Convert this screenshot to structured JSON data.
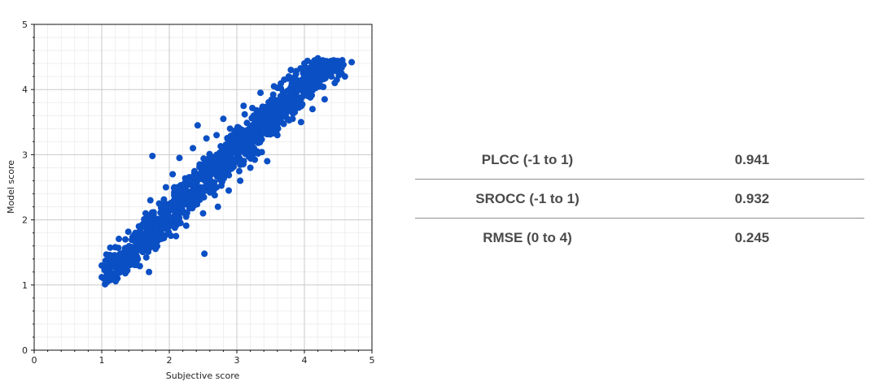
{
  "chart_data": {
    "type": "scatter",
    "title": "",
    "xlabel": "Subjective score",
    "ylabel": "Model score",
    "xlim": [
      0,
      5
    ],
    "ylim": [
      0,
      5
    ],
    "xticks": [
      "0",
      "1",
      "2",
      "3",
      "4",
      "5"
    ],
    "yticks": [
      "0",
      "1",
      "2",
      "3",
      "4",
      "5"
    ],
    "grid": true,
    "minor_grid": true,
    "legend": "none",
    "point_color": "#0b4fc4",
    "points": [
      [
        1.0,
        1.12
      ],
      [
        1.0,
        1.3
      ],
      [
        1.06,
        1.06
      ],
      [
        1.1,
        1.2
      ],
      [
        1.12,
        1.46
      ],
      [
        1.15,
        1.1
      ],
      [
        1.2,
        1.58
      ],
      [
        1.25,
        1.35
      ],
      [
        1.35,
        1.7
      ],
      [
        1.45,
        1.5
      ],
      [
        1.5,
        1.8
      ],
      [
        1.55,
        1.9
      ],
      [
        1.6,
        1.55
      ],
      [
        1.65,
        2.1
      ],
      [
        1.7,
        1.2
      ],
      [
        1.72,
        2.3
      ],
      [
        1.75,
        2.98
      ],
      [
        1.8,
        1.7
      ],
      [
        1.85,
        2.25
      ],
      [
        1.9,
        1.95
      ],
      [
        1.95,
        2.5
      ],
      [
        2.0,
        2.15
      ],
      [
        2.05,
        2.7
      ],
      [
        2.1,
        1.75
      ],
      [
        2.15,
        2.95
      ],
      [
        2.2,
        2.4
      ],
      [
        2.25,
        2.05
      ],
      [
        2.3,
        2.6
      ],
      [
        2.35,
        3.1
      ],
      [
        2.4,
        2.3
      ],
      [
        2.42,
        3.45
      ],
      [
        2.45,
        2.85
      ],
      [
        2.5,
        2.1
      ],
      [
        2.52,
        1.48
      ],
      [
        2.55,
        3.25
      ],
      [
        2.6,
        2.5
      ],
      [
        2.65,
        2.95
      ],
      [
        2.7,
        3.3
      ],
      [
        2.72,
        2.2
      ],
      [
        2.75,
        2.65
      ],
      [
        2.8,
        3.55
      ],
      [
        2.85,
        3.0
      ],
      [
        2.88,
        2.45
      ],
      [
        2.9,
        3.4
      ],
      [
        3.0,
        3.1
      ],
      [
        3.05,
        2.6
      ],
      [
        3.1,
        3.75
      ],
      [
        3.15,
        3.25
      ],
      [
        3.2,
        2.8
      ],
      [
        3.25,
        3.6
      ],
      [
        3.3,
        3.05
      ],
      [
        3.35,
        3.95
      ],
      [
        3.4,
        3.4
      ],
      [
        3.45,
        2.9
      ],
      [
        3.5,
        3.7
      ],
      [
        3.55,
        4.05
      ],
      [
        3.6,
        3.3
      ],
      [
        3.65,
        3.85
      ],
      [
        3.7,
        4.15
      ],
      [
        3.75,
        3.55
      ],
      [
        3.8,
        4.3
      ],
      [
        3.85,
        3.75
      ],
      [
        3.9,
        4.1
      ],
      [
        3.95,
        3.5
      ],
      [
        4.0,
        4.4
      ],
      [
        4.05,
        3.9
      ],
      [
        4.1,
        4.25
      ],
      [
        4.12,
        3.7
      ],
      [
        4.2,
        4.48
      ],
      [
        4.25,
        4.05
      ],
      [
        4.3,
        3.85
      ],
      [
        4.35,
        4.35
      ],
      [
        4.4,
        4.2
      ],
      [
        4.45,
        4.1
      ],
      [
        4.5,
        4.38
      ],
      [
        4.55,
        4.25
      ],
      [
        4.6,
        4.2
      ],
      [
        4.7,
        4.42
      ]
    ]
  },
  "metrics": [
    {
      "label": "PLCC (-1 to 1)",
      "value": "0.941"
    },
    {
      "label": "SROCC (-1 to 1)",
      "value": "0.932"
    },
    {
      "label": "RMSE (0 to 4)",
      "value": "0.245"
    }
  ]
}
